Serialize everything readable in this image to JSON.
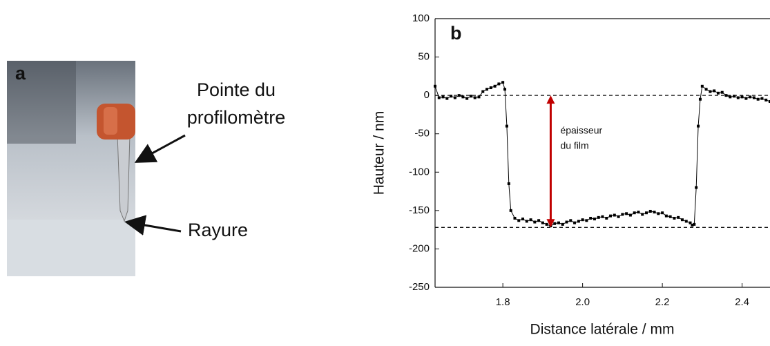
{
  "panel_a": {
    "label": "a",
    "tip_label": [
      "Pointe du",
      "profilomètre"
    ],
    "scratch_label": "Rayure"
  },
  "chart_data": {
    "type": "line",
    "panel_label": "b",
    "x_label": "Distance latérale / mm",
    "y_label": "Hauteur / nm",
    "annotation": [
      "épaisseur",
      "du film"
    ],
    "xlim": [
      1.63,
      2.47
    ],
    "ylim": [
      -250,
      100
    ],
    "xticks": [
      1.8,
      {
        "value": 2,
        "label": "2.0"
      },
      2.2,
      2.4
    ],
    "yticks": [
      -250,
      -200,
      -150,
      -100,
      -50,
      0,
      50,
      100
    ],
    "hlines": [
      0,
      -172
    ],
    "arrow": {
      "x": 1.92,
      "from": -172,
      "to": 0,
      "color": "#c00000"
    },
    "series": [
      {
        "color": "#000000",
        "x": [
          1.63,
          1.64,
          1.65,
          1.66,
          1.67,
          1.68,
          1.69,
          1.7,
          1.71,
          1.72,
          1.73,
          1.74,
          1.75,
          1.76,
          1.77,
          1.78,
          1.79,
          1.8,
          1.805,
          1.81,
          1.815,
          1.82,
          1.83,
          1.84,
          1.85,
          1.86,
          1.87,
          1.88,
          1.89,
          1.9,
          1.91,
          1.92,
          1.93,
          1.94,
          1.95,
          1.96,
          1.97,
          1.98,
          1.99,
          2.0,
          2.01,
          2.02,
          2.03,
          2.04,
          2.05,
          2.06,
          2.07,
          2.08,
          2.09,
          2.1,
          2.11,
          2.12,
          2.13,
          2.14,
          2.15,
          2.16,
          2.17,
          2.18,
          2.19,
          2.2,
          2.21,
          2.22,
          2.23,
          2.24,
          2.25,
          2.26,
          2.27,
          2.275,
          2.28,
          2.285,
          2.29,
          2.295,
          2.3,
          2.31,
          2.32,
          2.33,
          2.34,
          2.35,
          2.36,
          2.37,
          2.38,
          2.39,
          2.4,
          2.41,
          2.42,
          2.43,
          2.44,
          2.45,
          2.46,
          2.47
        ],
        "values": [
          12,
          -3,
          -2,
          -4,
          -1,
          -3,
          0,
          -2,
          -4,
          -1,
          -3,
          -2,
          5,
          8,
          10,
          12,
          15,
          17,
          8,
          -40,
          -115,
          -150,
          -160,
          -163,
          -161,
          -164,
          -162,
          -165,
          -163,
          -166,
          -168,
          -170,
          -167,
          -166,
          -168,
          -165,
          -163,
          -166,
          -164,
          -162,
          -163,
          -160,
          -161,
          -159,
          -158,
          -160,
          -157,
          -156,
          -158,
          -155,
          -154,
          -156,
          -153,
          -152,
          -155,
          -153,
          -151,
          -152,
          -154,
          -153,
          -157,
          -158,
          -160,
          -159,
          -162,
          -164,
          -166,
          -169,
          -168,
          -120,
          -40,
          -5,
          12,
          8,
          5,
          6,
          3,
          4,
          0,
          -2,
          -1,
          -3,
          -2,
          -4,
          -2,
          -3,
          -5,
          -4,
          -6,
          -8
        ]
      }
    ]
  }
}
